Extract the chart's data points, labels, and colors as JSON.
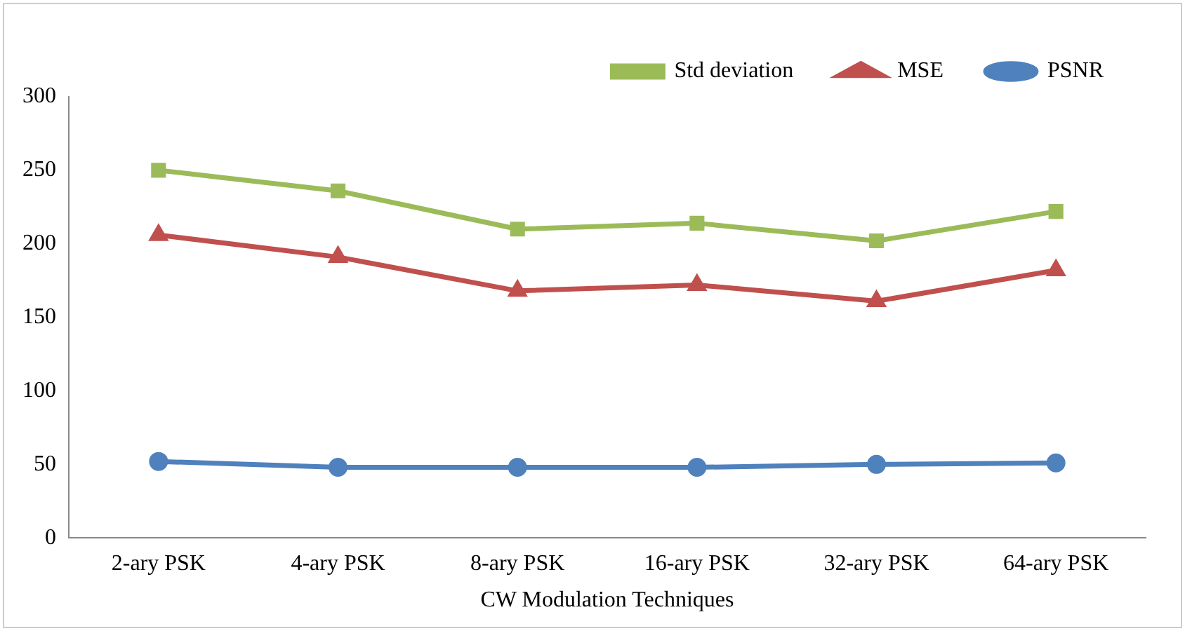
{
  "chart_data": {
    "type": "line",
    "xlabel": "CW Modulation Techniques",
    "categories": [
      "2-ary PSK",
      "4-ary PSK",
      "8-ary PSK",
      "16-ary PSK",
      "32-ary PSK",
      "64-ary PSK"
    ],
    "series": [
      {
        "name": "Std deviation",
        "color": "#9bbb59",
        "marker": "square",
        "values": [
          250,
          236,
          210,
          214,
          202,
          222
        ]
      },
      {
        "name": "MSE",
        "color": "#c0504d",
        "marker": "triangle",
        "values": [
          206,
          191,
          168,
          172,
          161,
          182
        ]
      },
      {
        "name": "PSNR",
        "color": "#4f81bd",
        "marker": "circle",
        "values": [
          52,
          48,
          48,
          48,
          50,
          51
        ]
      }
    ],
    "ylim": [
      0,
      300
    ],
    "yticks": [
      0,
      50,
      100,
      150,
      200,
      250,
      300
    ],
    "grid": false,
    "legend": "top right",
    "line_style": "solid"
  }
}
